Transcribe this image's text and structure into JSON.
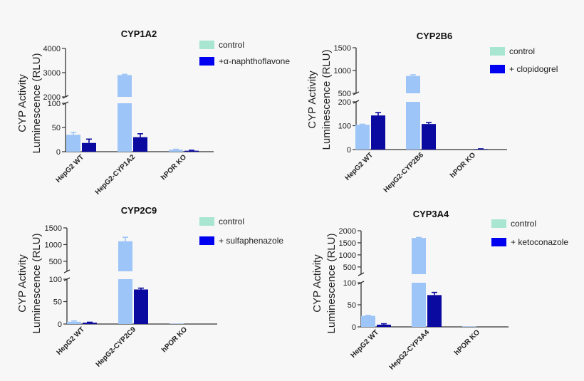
{
  "chart_data": [
    {
      "type": "bar",
      "title": "CYP1A2",
      "ylabel": "CYP Activity\nLuminescence (RLU)",
      "ylabel_lines": [
        "CYP Activity",
        "Luminescence (RLU)"
      ],
      "categories": [
        "HepG2 WT",
        "HepG2-CYP1A2",
        "hPOR KO"
      ],
      "axis_break": true,
      "lower_ylim": [
        0,
        100
      ],
      "upper_ylim": [
        2000,
        4000
      ],
      "lower_ticks": [
        "0",
        "50",
        "100"
      ],
      "upper_ticks": [
        "2000",
        "3000",
        "4000"
      ],
      "legend_position": "top-right",
      "series": [
        {
          "name": "control",
          "values": [
            35,
            2900,
            4
          ],
          "errors": [
            5,
            30,
            1
          ],
          "color": "#9ec5f7"
        },
        {
          "name": "+α-naphthoflavone",
          "values": [
            18,
            30,
            2
          ],
          "errors": [
            8,
            7,
            1
          ],
          "color": "#0a0aa0"
        }
      ]
    },
    {
      "type": "bar",
      "title": "CYP2B6",
      "ylabel": "CYP Activity\nLuminescence (RLU)",
      "ylabel_lines": [
        "CYP Activity",
        "Luminescence (RLU)"
      ],
      "categories": [
        "HepG2 WT",
        "HepG2-CYP2B6",
        "hPOR KO"
      ],
      "axis_break": true,
      "lower_ylim": [
        0,
        200
      ],
      "upper_ylim": [
        500,
        1500
      ],
      "lower_ticks": [
        "0",
        "100",
        "200"
      ],
      "upper_ticks": [
        "500",
        "1000",
        "1500"
      ],
      "legend_position": "top-right",
      "series": [
        {
          "name": "control",
          "values": [
            104,
            880,
            0
          ],
          "errors": [
            2,
            25,
            0
          ],
          "color": "#9ec5f7"
        },
        {
          "name": "+ clopidogrel",
          "values": [
            143,
            107,
            2
          ],
          "errors": [
            12,
            6,
            1
          ],
          "color": "#0a0aa0"
        }
      ]
    },
    {
      "type": "bar",
      "title": "CYP2C9",
      "ylabel": "CYP Activity\nLuminescence (RLU)",
      "ylabel_lines": [
        "CYP Activity",
        "Luminescence (RLU)"
      ],
      "categories": [
        "HepG2 WT",
        "HepG2-CYP2C9",
        "hPOR KO"
      ],
      "axis_break": true,
      "lower_ylim": [
        0,
        100
      ],
      "upper_ylim": [
        200,
        1500
      ],
      "lower_ticks": [
        "0",
        "50",
        "100"
      ],
      "upper_ticks": [
        "500",
        "1000",
        "1500"
      ],
      "legend_position": "top-right",
      "series": [
        {
          "name": "control",
          "values": [
            5,
            1100,
            1
          ],
          "errors": [
            2,
            120,
            0
          ],
          "color": "#9ec5f7"
        },
        {
          "name": "+ sulfaphenazole",
          "values": [
            3,
            77,
            0
          ],
          "errors": [
            1,
            3,
            0
          ],
          "color": "#0a0aa0"
        }
      ]
    },
    {
      "type": "bar",
      "title": "CYP3A4",
      "ylabel": "CYP Activity\nLuminescence (RLU)",
      "ylabel_lines": [
        "CYP Activity",
        "Luminescence (RLU)"
      ],
      "categories": [
        "HepG2 WT",
        "HepG2-CYP3A4",
        "hPOR KO"
      ],
      "axis_break": true,
      "lower_ylim": [
        0,
        100
      ],
      "upper_ylim": [
        200,
        2000
      ],
      "lower_ticks": [
        "0",
        "50",
        "100"
      ],
      "upper_ticks": [
        "500",
        "1000",
        "1500",
        "2000"
      ],
      "legend_position": "top-right",
      "series": [
        {
          "name": "control",
          "values": [
            25,
            1700,
            1
          ],
          "errors": [
            1,
            20,
            0
          ],
          "color": "#9ec5f7"
        },
        {
          "name": "+ ketoconazole",
          "values": [
            5,
            72,
            0
          ],
          "errors": [
            2,
            6,
            0
          ],
          "color": "#0a0aa0"
        }
      ]
    }
  ],
  "legend_colors": {
    "control": "#a8e6d2",
    "inhibitor": "#0000f0"
  }
}
